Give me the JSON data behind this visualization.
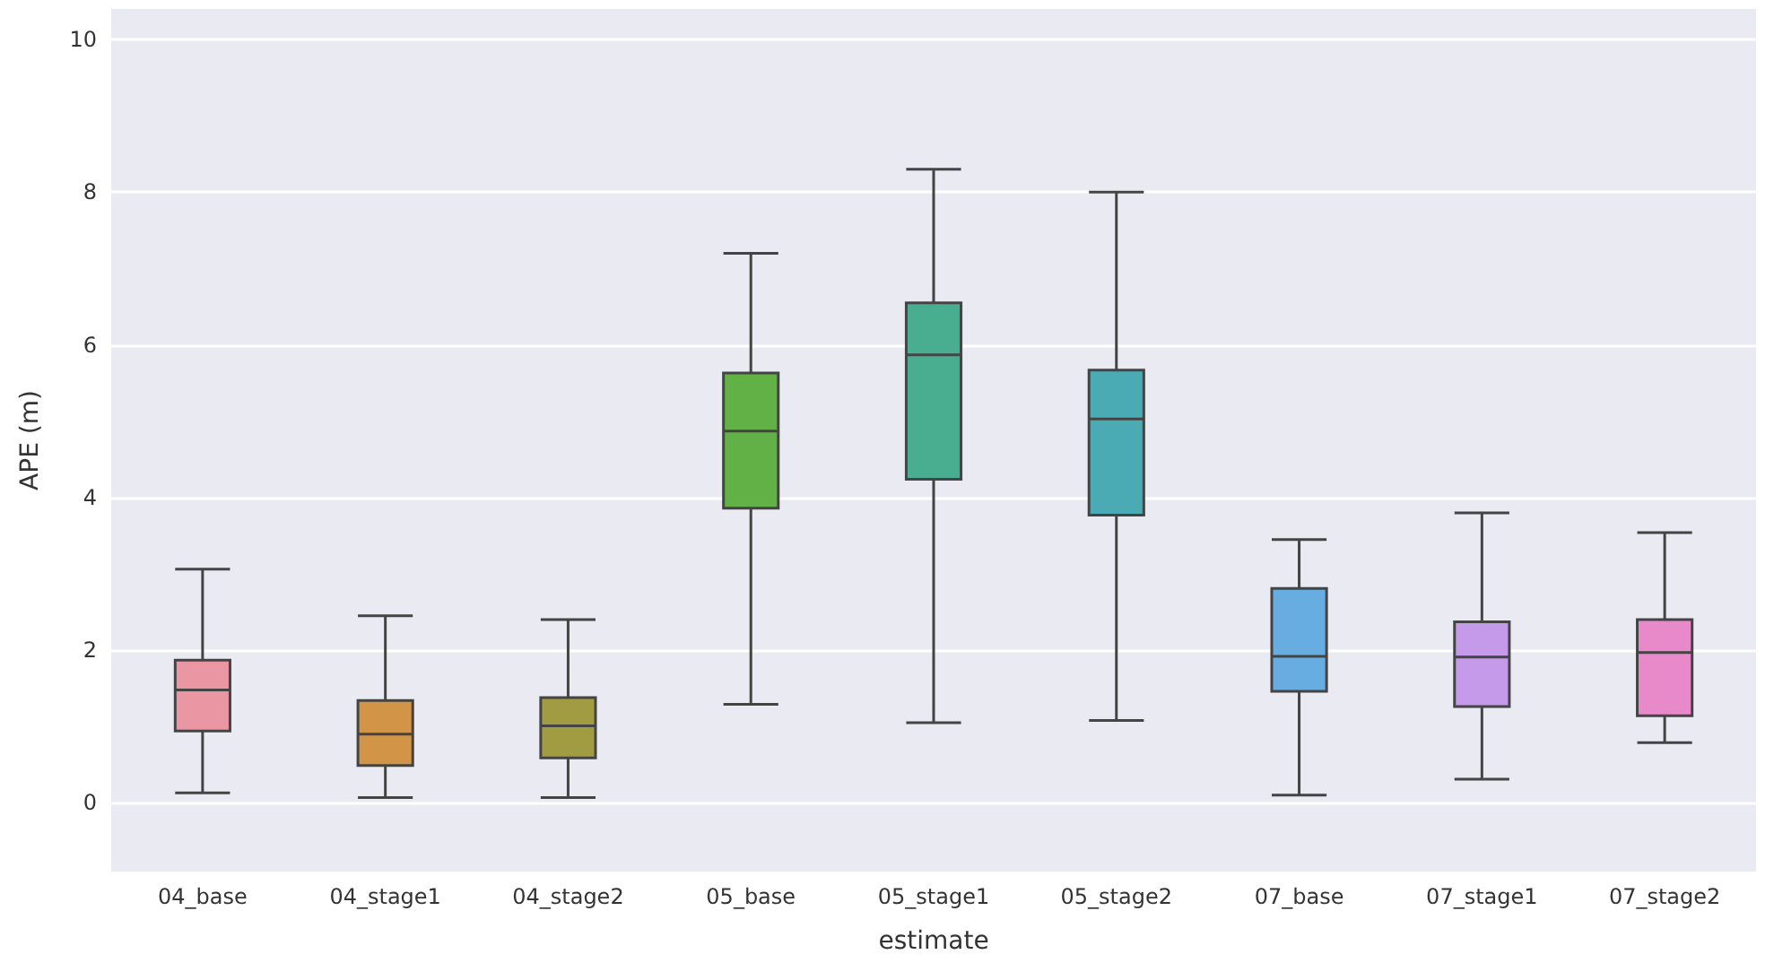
{
  "chart_data": {
    "type": "box",
    "xlabel": "estimate",
    "ylabel": "APE (m)",
    "categories": [
      "04_base",
      "04_stage1",
      "04_stage2",
      "05_base",
      "05_stage1",
      "05_stage2",
      "07_base",
      "07_stage1",
      "07_stage2"
    ],
    "colors": [
      "#ea96a3",
      "#d29547",
      "#a19c41",
      "#62b147",
      "#49ae8f",
      "#4aabb4",
      "#68ade2",
      "#c59aea",
      "#e88ac9"
    ],
    "boxes": [
      {
        "low": 0.13,
        "q1": 0.94,
        "median": 1.48,
        "q3": 1.87,
        "high": 3.06
      },
      {
        "low": 0.07,
        "q1": 0.49,
        "median": 0.9,
        "q3": 1.34,
        "high": 2.45
      },
      {
        "low": 0.07,
        "q1": 0.59,
        "median": 1.01,
        "q3": 1.38,
        "high": 2.4
      },
      {
        "low": 1.29,
        "q1": 3.86,
        "median": 4.87,
        "q3": 5.63,
        "high": 7.2
      },
      {
        "low": 1.05,
        "q1": 4.24,
        "median": 5.87,
        "q3": 6.55,
        "high": 8.3
      },
      {
        "low": 1.08,
        "q1": 3.77,
        "median": 5.03,
        "q3": 5.67,
        "high": 8.0
      },
      {
        "low": 0.1,
        "q1": 1.46,
        "median": 1.92,
        "q3": 2.81,
        "high": 3.45
      },
      {
        "low": 0.31,
        "q1": 1.26,
        "median": 1.91,
        "q3": 2.37,
        "high": 3.8
      },
      {
        "low": 0.79,
        "q1": 1.14,
        "median": 1.97,
        "q3": 2.4,
        "high": 3.54
      }
    ],
    "ylim": [
      -0.9,
      10.4
    ],
    "yticks": [
      0,
      2,
      4,
      6,
      8,
      10
    ],
    "grid": "y"
  }
}
